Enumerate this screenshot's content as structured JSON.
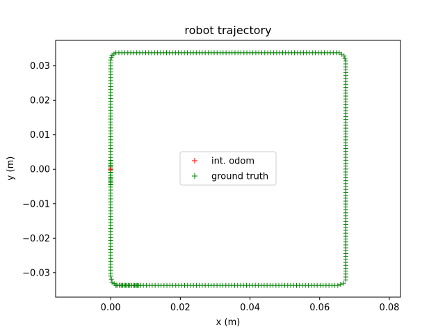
{
  "chart_data": {
    "type": "scatter",
    "title": "robot trajectory",
    "xlabel": "x (m)",
    "ylabel": "y (m)",
    "xlim": [
      -0.0158,
      0.0832
    ],
    "ylim": [
      -0.0371,
      0.0374
    ],
    "xticks": [
      {
        "value": 0.0,
        "label": "0.00"
      },
      {
        "value": 0.02,
        "label": "0.02"
      },
      {
        "value": 0.04,
        "label": "0.04"
      },
      {
        "value": 0.06,
        "label": "0.06"
      },
      {
        "value": 0.08,
        "label": "0.08"
      }
    ],
    "yticks": [
      {
        "value": 0.03,
        "label": "0.03"
      },
      {
        "value": 0.02,
        "label": "0.02"
      },
      {
        "value": 0.01,
        "label": "0.01"
      },
      {
        "value": 0.0,
        "label": "0.00"
      },
      {
        "value": -0.01,
        "label": "−0.01"
      },
      {
        "value": -0.02,
        "label": "−0.02"
      },
      {
        "value": -0.03,
        "label": "−0.03"
      }
    ],
    "grid": false,
    "legend_position": "center",
    "marker": "+",
    "series": [
      {
        "name": "int. odom",
        "color": "#ff0000",
        "points": [
          [
            0,
            0
          ]
        ]
      },
      {
        "name": "ground truth",
        "color": "#008000",
        "path": [
          [
            0.0,
            0.0
          ],
          [
            0.0,
            -0.031
          ],
          [
            0.0004,
            -0.0328
          ],
          [
            0.0016,
            -0.0336
          ],
          [
            0.006,
            -0.0337
          ],
          [
            0.0652,
            -0.0337
          ],
          [
            0.0668,
            -0.0331
          ],
          [
            0.0675,
            -0.0321
          ],
          [
            0.0675,
            0.0314
          ],
          [
            0.067,
            0.0329
          ],
          [
            0.0656,
            0.0338
          ],
          [
            0.0015,
            0.0338
          ],
          [
            0.0004,
            0.0331
          ],
          [
            0.0,
            0.0317
          ],
          [
            0.0,
            0.0
          ]
        ]
      }
    ]
  }
}
